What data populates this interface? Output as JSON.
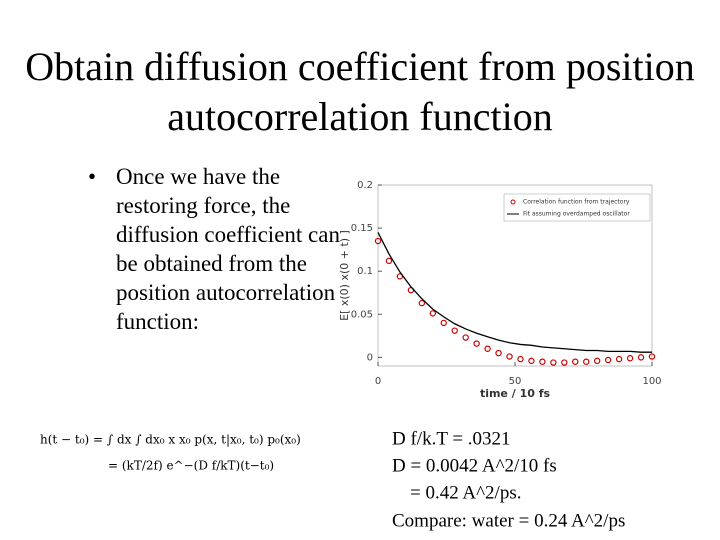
{
  "title": "Obtain diffusion coefficient from position autocorrelation function",
  "bullet": "Once we have the restoring force, the diffusion coefficient can be obtained from the position autocorrelation function:",
  "equation": [
    "h(t − t₀)  =  ∫ dx ∫ dx₀ x x₀ p(x, t|x₀, t₀) p₀(x₀)",
    "=  (kT/2f) e^−(D f/kT)(t−t₀)"
  ],
  "results": [
    "D f/k.T = .0321",
    "D = 0.0042 A^2/10 fs",
    "= 0.42 A^2/ps.",
    "Compare: water = 0.24 A^2/ps"
  ],
  "chart_data": {
    "type": "line",
    "x_label": "time / 10 fs",
    "y_label": "E[ x(0) x(0 + t) ]",
    "x": [
      0,
      4,
      8,
      12,
      16,
      20,
      24,
      28,
      32,
      36,
      40,
      44,
      48,
      52,
      56,
      60,
      64,
      68,
      72,
      76,
      80,
      84,
      88,
      92,
      96,
      100
    ],
    "series": [
      {
        "name": "Correlation function from trajectory",
        "color": "#cc0000",
        "mode": "markers",
        "values": [
          0.135,
          0.112,
          0.094,
          0.078,
          0.063,
          0.051,
          0.04,
          0.031,
          0.023,
          0.016,
          0.01,
          0.005,
          0.001,
          -0.002,
          -0.004,
          -0.005,
          -0.006,
          -0.006,
          -0.005,
          -0.005,
          -0.004,
          -0.003,
          -0.002,
          -0.001,
          0,
          0.001
        ]
      },
      {
        "name": "Fit assuming overdamped oscillator",
        "color": "#000000",
        "mode": "line",
        "values": [
          0.145,
          0.12,
          0.099,
          0.082,
          0.068,
          0.056,
          0.047,
          0.039,
          0.033,
          0.028,
          0.024,
          0.02,
          0.017,
          0.015,
          0.014,
          0.012,
          0.011,
          0.01,
          0.009,
          0.008,
          0.008,
          0.007,
          0.007,
          0.007,
          0.006,
          0.006
        ]
      }
    ],
    "xlim": [
      0,
      100
    ],
    "xticks": [
      0,
      50,
      100
    ],
    "ylim": [
      -0.01,
      0.2
    ],
    "yticks": [
      0,
      0.05,
      0.1,
      0.15,
      0.2
    ],
    "legend": "top-right"
  }
}
